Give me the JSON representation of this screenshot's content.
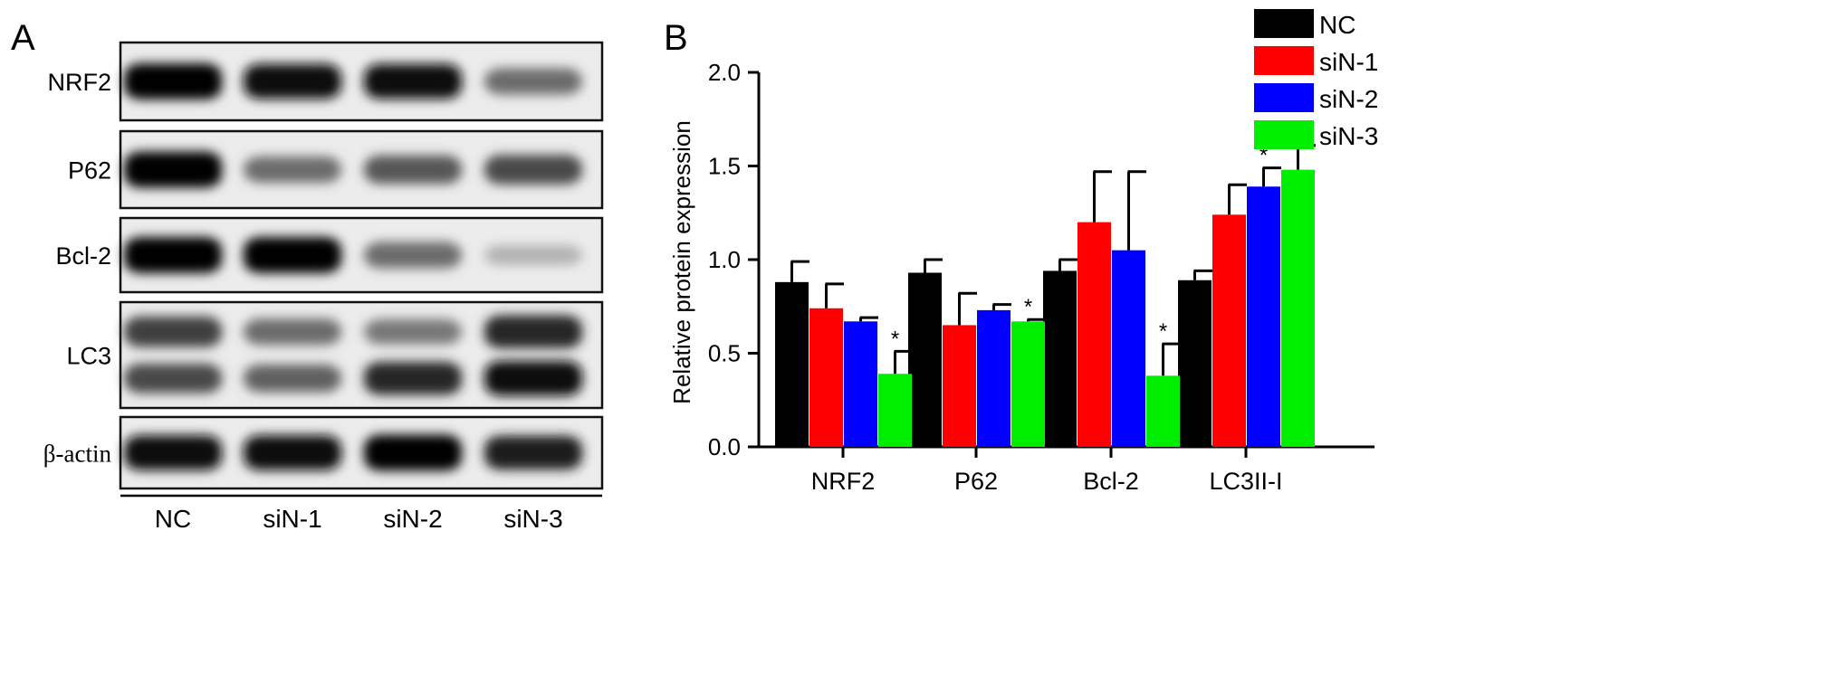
{
  "panel_a": {
    "label": "A",
    "blots": [
      {
        "name": "NRF2",
        "bands": [
          [
            1.0,
            0.95,
            0.95,
            0.55
          ]
        ]
      },
      {
        "name": "P62",
        "bands": [
          [
            1.0,
            0.55,
            0.65,
            0.7
          ]
        ]
      },
      {
        "name": "Bcl-2",
        "bands": [
          [
            1.0,
            1.0,
            0.55,
            0.25
          ]
        ]
      },
      {
        "name": "LC3",
        "bands": [
          [
            0.75,
            0.55,
            0.5,
            0.85
          ],
          [
            0.7,
            0.6,
            0.85,
            0.95
          ]
        ]
      },
      {
        "name": "β-actin",
        "bands": [
          [
            0.95,
            0.95,
            1.0,
            0.9
          ]
        ]
      }
    ],
    "lanes": [
      "NC",
      "siN-1",
      "siN-2",
      "siN-3"
    ]
  },
  "colors": {
    "NC": "#000000",
    "siN-1": "#ff0000",
    "siN-2": "#0000ff",
    "siN-3": "#00ee00"
  },
  "chart_data": {
    "panel_label": "B",
    "type": "bar",
    "ylabel": "Relative protein expression",
    "xlabel": "",
    "ylim": [
      0,
      2.0
    ],
    "yticks": [
      "0.0",
      "0.5",
      "1.0",
      "1.5",
      "2.0"
    ],
    "categories": [
      "NRF2",
      "P62",
      "Bcl-2",
      "LC3II-I"
    ],
    "legend_position": "top-right",
    "series": [
      {
        "name": "NC",
        "values": [
          0.88,
          0.93,
          0.94,
          0.89
        ],
        "errors": [
          0.11,
          0.07,
          0.06,
          0.05
        ],
        "sig": [
          false,
          false,
          false,
          false
        ]
      },
      {
        "name": "siN-1",
        "values": [
          0.74,
          0.65,
          1.2,
          1.24
        ],
        "errors": [
          0.13,
          0.17,
          0.27,
          0.16
        ],
        "sig": [
          false,
          false,
          false,
          false
        ]
      },
      {
        "name": "siN-2",
        "values": [
          0.67,
          0.73,
          1.05,
          1.39
        ],
        "errors": [
          0.02,
          0.03,
          0.42,
          0.1
        ],
        "sig": [
          false,
          false,
          false,
          true
        ]
      },
      {
        "name": "siN-3",
        "values": [
          0.39,
          0.67,
          0.38,
          1.48
        ],
        "errors": [
          0.12,
          0.01,
          0.17,
          0.13
        ],
        "sig": [
          true,
          true,
          true,
          true
        ]
      }
    ],
    "sig_marker": "*"
  }
}
